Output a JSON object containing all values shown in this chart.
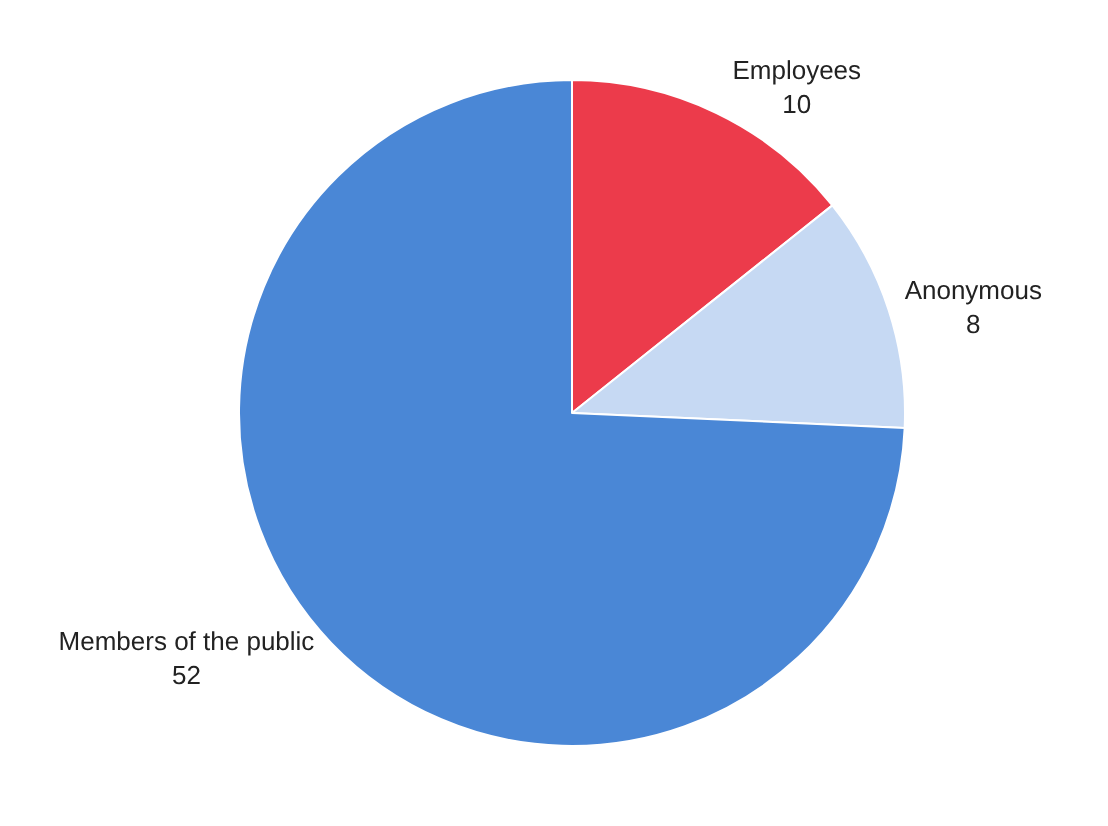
{
  "chart_data": {
    "type": "pie",
    "categories": [
      "Employees",
      "Anonymous",
      "Members of the public"
    ],
    "values": [
      10,
      8,
      52
    ],
    "colors": [
      "#ec3b4b",
      "#c6d9f3",
      "#4a87d6"
    ],
    "data_labels": true,
    "legend": false
  }
}
